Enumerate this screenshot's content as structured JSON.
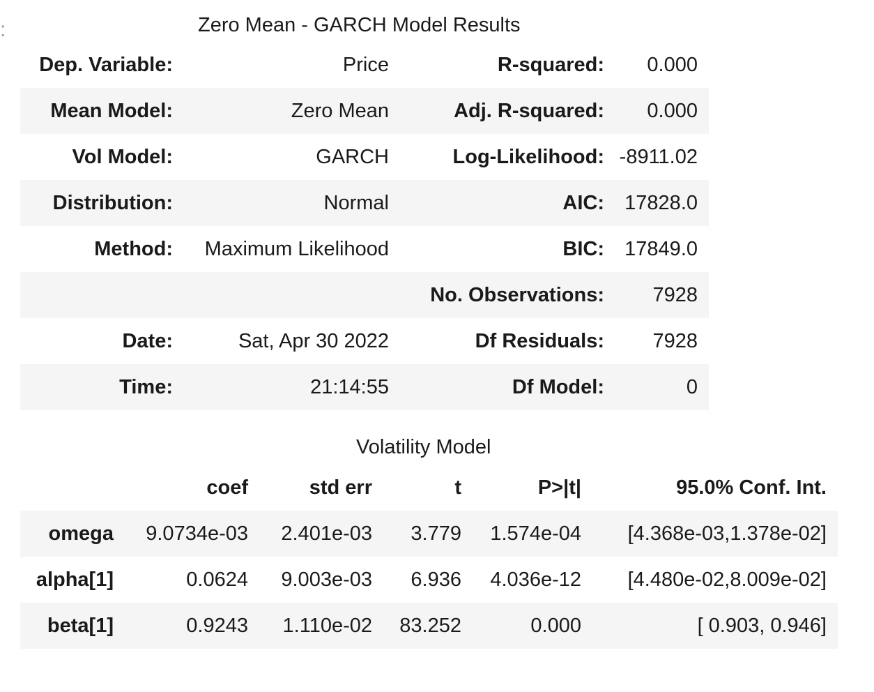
{
  "prompt_marker": ":",
  "summary_title": "Zero Mean - GARCH Model Results",
  "summary_rows": [
    {
      "left_label": "Dep. Variable:",
      "left_value": "Price",
      "right_label": "R-squared:",
      "right_value": "0.000"
    },
    {
      "left_label": "Mean Model:",
      "left_value": "Zero Mean",
      "right_label": "Adj. R-squared:",
      "right_value": "0.000"
    },
    {
      "left_label": "Vol Model:",
      "left_value": "GARCH",
      "right_label": "Log-Likelihood:",
      "right_value": "-8911.02"
    },
    {
      "left_label": "Distribution:",
      "left_value": "Normal",
      "right_label": "AIC:",
      "right_value": "17828.0"
    },
    {
      "left_label": "Method:",
      "left_value": "Maximum Likelihood",
      "right_label": "BIC:",
      "right_value": "17849.0"
    },
    {
      "left_label": "",
      "left_value": "",
      "right_label": "No. Observations:",
      "right_value": "7928"
    },
    {
      "left_label": "Date:",
      "left_value": "Sat, Apr 30 2022",
      "right_label": "Df Residuals:",
      "right_value": "7928"
    },
    {
      "left_label": "Time:",
      "left_value": "21:14:55",
      "right_label": "Df Model:",
      "right_value": "0"
    }
  ],
  "volatility_title": "Volatility Model",
  "volatility_headers": [
    "",
    "coef",
    "std err",
    "t",
    "P>|t|",
    "95.0% Conf. Int."
  ],
  "volatility_rows": [
    {
      "param": "omega",
      "coef": "9.0734e-03",
      "std_err": "2.401e-03",
      "t": "3.779",
      "p": "1.574e-04",
      "ci": "[4.368e-03,1.378e-02]"
    },
    {
      "param": "alpha[1]",
      "coef": "0.0624",
      "std_err": "9.003e-03",
      "t": "6.936",
      "p": "4.036e-12",
      "ci": "[4.480e-02,8.009e-02]"
    },
    {
      "param": "beta[1]",
      "coef": "0.9243",
      "std_err": "1.110e-02",
      "t": "83.252",
      "p": "0.000",
      "ci": "[ 0.903, 0.946]"
    }
  ]
}
